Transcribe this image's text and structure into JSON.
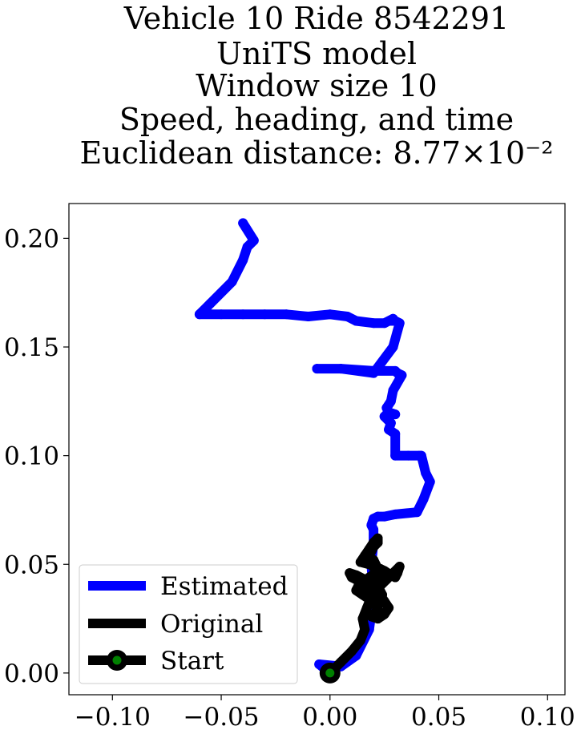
{
  "chart_data": {
    "type": "line",
    "title": [
      "Vehicle 10 Ride 8542291",
      "UniTS model",
      "Window size 10",
      "Speed, heading, and time",
      "Euclidean distance: 8.77×10⁻²"
    ],
    "xlabel": "",
    "ylabel": "",
    "xlim": [
      -0.12,
      0.108
    ],
    "ylim": [
      -0.01,
      0.216
    ],
    "x_ticks": [
      "−0.10",
      "−0.05",
      "0.00",
      "0.05",
      "0.10"
    ],
    "x_tick_values": [
      -0.1,
      -0.05,
      0.0,
      0.05,
      0.1
    ],
    "y_ticks": [
      "0.00",
      "0.05",
      "0.10",
      "0.15",
      "0.20"
    ],
    "y_tick_values": [
      0.0,
      0.05,
      0.1,
      0.15,
      0.2
    ],
    "grid": false,
    "legend_position": "lower-left",
    "series": [
      {
        "name": "Estimated",
        "color": "#0000ff",
        "x": [
          0.0,
          -0.005,
          0.005,
          0.012,
          0.018,
          0.02,
          0.019,
          0.02,
          0.02,
          0.019,
          0.02,
          0.022,
          0.025,
          0.03,
          0.04,
          0.043,
          0.046,
          0.044,
          0.042,
          0.041,
          0.036,
          0.03,
          0.03,
          0.027,
          0.028,
          0.025,
          0.026,
          0.026,
          0.03,
          0.027,
          0.026,
          0.028,
          0.029,
          0.033,
          0.031,
          0.03,
          0.02,
          0.005,
          -0.006,
          0.005,
          0.02,
          0.029,
          0.032,
          0.03,
          0.028,
          0.029,
          0.025,
          0.02,
          0.012,
          0.008,
          0.0,
          -0.01,
          -0.02,
          -0.03,
          -0.04,
          -0.05,
          -0.06,
          -0.055,
          -0.045,
          -0.04,
          -0.038,
          -0.035,
          -0.04
        ],
        "y": [
          0.0,
          0.004,
          0.003,
          0.008,
          0.02,
          0.035,
          0.05,
          0.06,
          0.066,
          0.068,
          0.071,
          0.072,
          0.072,
          0.073,
          0.074,
          0.08,
          0.088,
          0.092,
          0.1,
          0.1,
          0.1,
          0.1,
          0.11,
          0.112,
          0.115,
          0.118,
          0.119,
          0.119,
          0.119,
          0.12,
          0.122,
          0.125,
          0.13,
          0.137,
          0.138,
          0.139,
          0.139,
          0.14,
          0.14,
          0.14,
          0.138,
          0.15,
          0.161,
          0.162,
          0.162,
          0.163,
          0.161,
          0.161,
          0.162,
          0.164,
          0.165,
          0.164,
          0.165,
          0.165,
          0.165,
          0.165,
          0.165,
          0.17,
          0.18,
          0.19,
          0.196,
          0.199,
          0.207
        ]
      },
      {
        "name": "Original",
        "color": "#000000",
        "x": [
          0.0,
          0.005,
          0.01,
          0.014,
          0.016,
          0.015,
          0.017,
          0.019,
          0.018,
          0.016,
          0.014,
          0.01,
          0.009,
          0.012,
          0.016,
          0.013,
          0.012,
          0.015,
          0.018,
          0.02,
          0.022,
          0.021,
          0.019,
          0.022,
          0.025,
          0.027,
          0.025,
          0.023,
          0.021,
          0.018,
          0.021,
          0.023,
          0.025,
          0.028,
          0.03,
          0.031,
          0.032,
          0.029,
          0.026,
          0.023,
          0.022,
          0.024,
          0.023,
          0.021,
          0.019,
          0.021,
          0.023,
          0.021,
          0.019,
          0.017,
          0.018,
          0.019,
          0.02,
          0.022,
          0.022,
          0.02,
          0.018,
          0.016,
          0.014,
          0.018,
          0.02,
          0.022,
          0.02,
          0.022,
          0.024,
          0.022
        ],
        "y": [
          0.0,
          0.005,
          0.01,
          0.015,
          0.02,
          0.025,
          0.03,
          0.035,
          0.038,
          0.04,
          0.042,
          0.044,
          0.046,
          0.045,
          0.043,
          0.04,
          0.038,
          0.036,
          0.034,
          0.032,
          0.03,
          0.028,
          0.026,
          0.025,
          0.027,
          0.03,
          0.033,
          0.036,
          0.04,
          0.044,
          0.046,
          0.048,
          0.047,
          0.045,
          0.044,
          0.046,
          0.049,
          0.046,
          0.043,
          0.04,
          0.038,
          0.036,
          0.033,
          0.035,
          0.038,
          0.041,
          0.044,
          0.047,
          0.05,
          0.052,
          0.054,
          0.056,
          0.058,
          0.06,
          0.062,
          0.06,
          0.057,
          0.054,
          0.051,
          0.05,
          0.052,
          0.048,
          0.044,
          0.04,
          0.036,
          0.034
        ]
      },
      {
        "name": "Start",
        "color": "#000000",
        "marker_face": "#008000",
        "x": [
          0.0
        ],
        "y": [
          0.0
        ]
      }
    ]
  }
}
